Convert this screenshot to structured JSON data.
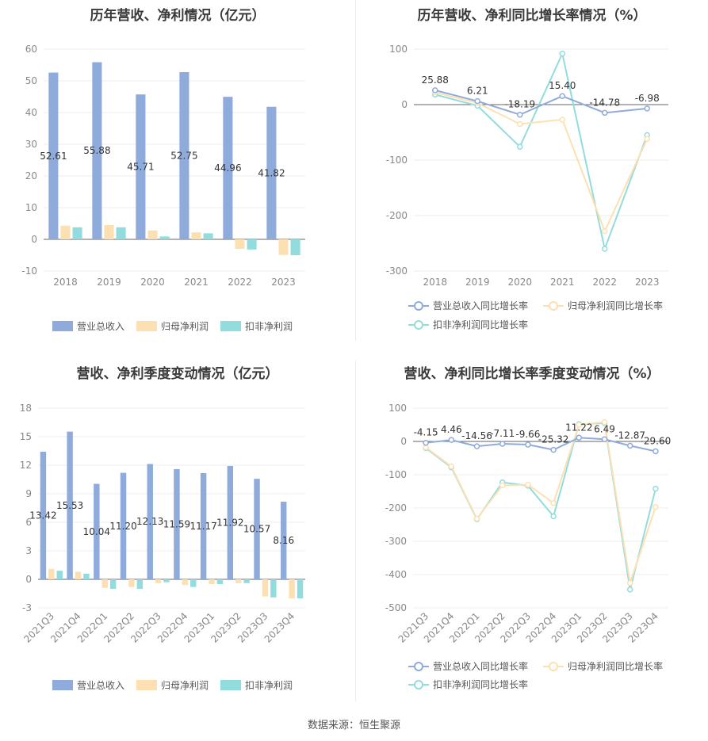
{
  "source": "数据来源：恒生聚源",
  "colors": {
    "revenue": "#8fabdc",
    "net_profit": "#fde0b2",
    "deducted": "#93dcdd",
    "rev_growth": "#8fabdc",
    "np_growth": "#fde0b2",
    "ded_growth": "#93dcdd",
    "axis_text": "#888888",
    "grid": "#eeeeee"
  },
  "chart_data": [
    {
      "id": "annual-bar",
      "type": "bar",
      "title": "历年营收、净利情况（亿元）",
      "categories": [
        "2018",
        "2019",
        "2020",
        "2021",
        "2022",
        "2023"
      ],
      "ylim": [
        -10,
        60
      ],
      "yticks": [
        -10,
        0,
        10,
        20,
        30,
        40,
        50,
        60
      ],
      "series": [
        {
          "name": "营业总收入",
          "values": [
            52.61,
            55.88,
            45.71,
            52.75,
            44.96,
            41.82
          ],
          "labels": [
            "52.61",
            "55.88",
            "45.71",
            "52.75",
            "44.96",
            "41.82"
          ]
        },
        {
          "name": "归母净利润",
          "values": [
            4.3,
            4.5,
            2.8,
            2.2,
            -3.0,
            -4.9
          ]
        },
        {
          "name": "扣非净利润",
          "values": [
            3.8,
            3.8,
            0.9,
            1.9,
            -3.2,
            -5.0
          ]
        }
      ],
      "legend": "bottom",
      "grid": true
    },
    {
      "id": "annual-line",
      "type": "line",
      "title": "历年营收、净利同比增长率情况（%）",
      "categories": [
        "2018",
        "2019",
        "2020",
        "2021",
        "2022",
        "2023"
      ],
      "ylim": [
        -300,
        100
      ],
      "yticks": [
        -300,
        -200,
        -100,
        0,
        100
      ],
      "series": [
        {
          "name": "营业总收入同比增长率",
          "values": [
            25.88,
            6.21,
            -18.19,
            15.4,
            -14.78,
            -6.98
          ],
          "labels": [
            "25.88",
            "6.21",
            "-18.19",
            "15.40",
            "-14.78",
            "-6.98"
          ]
        },
        {
          "name": "归母净利润同比增长率",
          "values": [
            22,
            3,
            -35,
            -27,
            -228,
            -62
          ]
        },
        {
          "name": "扣非净利润同比增长率",
          "values": [
            18,
            -2,
            -76,
            92,
            -260,
            -55
          ]
        }
      ],
      "legend": "bottom",
      "grid": true
    },
    {
      "id": "quarter-bar",
      "type": "bar",
      "title": "营收、净利季度变动情况（亿元）",
      "categories": [
        "2021Q3",
        "2021Q4",
        "2022Q1",
        "2022Q2",
        "2022Q3",
        "2022Q4",
        "2023Q1",
        "2023Q2",
        "2023Q3",
        "2023Q4"
      ],
      "ylim": [
        -3,
        18
      ],
      "yticks": [
        -3,
        0,
        3,
        6,
        9,
        12,
        15,
        18
      ],
      "series": [
        {
          "name": "营业总收入",
          "values": [
            13.42,
            15.53,
            10.04,
            11.2,
            12.13,
            11.59,
            11.17,
            11.92,
            10.57,
            8.16
          ],
          "labels": [
            "13.42",
            "15.53",
            "10.04",
            "11.20",
            "12.13",
            "11.59",
            "11.17",
            "11.92",
            "10.57",
            "8.16"
          ]
        },
        {
          "name": "归母净利润",
          "values": [
            1.1,
            0.8,
            -0.9,
            -0.8,
            -0.4,
            -0.6,
            -0.5,
            -0.4,
            -1.8,
            -2.0
          ]
        },
        {
          "name": "扣非净利润",
          "values": [
            0.9,
            0.6,
            -1.0,
            -1.0,
            -0.3,
            -0.8,
            -0.5,
            -0.4,
            -1.9,
            -2.0
          ]
        }
      ],
      "legend": "bottom",
      "grid": true
    },
    {
      "id": "quarter-line",
      "type": "line",
      "title": "营收、净利同比增长率季度变动情况（%）",
      "categories": [
        "2021Q3",
        "2021Q4",
        "2022Q1",
        "2022Q2",
        "2022Q3",
        "2022Q4",
        "2023Q1",
        "2023Q2",
        "2023Q3",
        "2023Q4"
      ],
      "ylim": [
        -500,
        100
      ],
      "yticks": [
        -500,
        -400,
        -300,
        -200,
        -100,
        0,
        100
      ],
      "series": [
        {
          "name": "营业总收入同比增长率",
          "values": [
            -4.15,
            4.46,
            -14.56,
            -7.11,
            -9.66,
            -25.32,
            11.22,
            6.49,
            -12.87,
            -29.6
          ],
          "labels": [
            "-4.15",
            "4.46",
            "-14.56",
            "-7.11",
            "-9.66",
            "-25.32",
            "11.22",
            "6.49",
            "-12.87",
            "-29.60"
          ]
        },
        {
          "name": "归母净利润同比增长率",
          "values": [
            -18,
            -75,
            -232,
            -132,
            -130,
            -185,
            50,
            58,
            -425,
            -197
          ]
        },
        {
          "name": "扣非净利润同比增长率",
          "values": [
            -20,
            -78,
            -234,
            -123,
            -133,
            -225,
            52,
            55,
            -445,
            -142
          ]
        }
      ],
      "legend": "bottom",
      "grid": true
    }
  ]
}
